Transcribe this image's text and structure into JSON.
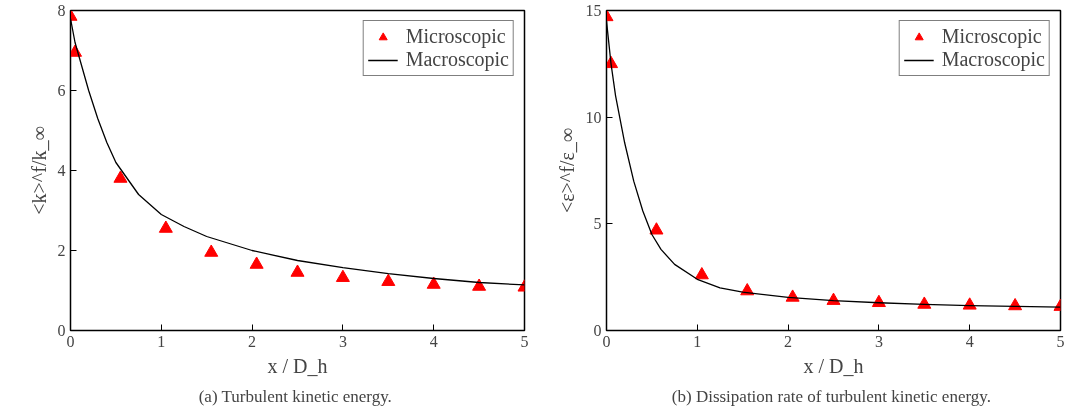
{
  "chart_data": [
    {
      "type": "scatter",
      "xlabel": "x / D_h",
      "ylabel": "<k>^f/k_∞",
      "annotations": [
        "(a)  Turbulent kinetic energy."
      ],
      "xlim": [
        0,
        5
      ],
      "xticks": [
        0,
        1,
        2,
        3,
        4,
        5
      ],
      "ylim": [
        0,
        8
      ],
      "yticks": [
        0,
        2,
        4,
        6,
        8
      ],
      "grid": false,
      "legend": "top right",
      "series": [
        {
          "name": "Microscopic",
          "marker": "triangle",
          "color": "#ff0000",
          "x": [
            0,
            0.05,
            0.55,
            1.05,
            1.55,
            2.05,
            2.5,
            3,
            3.5,
            4,
            4.5,
            5
          ],
          "values": [
            7.85,
            6.95,
            3.8,
            2.55,
            1.95,
            1.65,
            1.45,
            1.32,
            1.22,
            1.15,
            1.1,
            1.08
          ]
        },
        {
          "name": "Macroscopic",
          "type": "line",
          "line_style": "solid",
          "color": "#000000",
          "x": [
            0,
            0.05,
            0.1,
            0.2,
            0.3,
            0.4,
            0.5,
            0.75,
            1,
            1.25,
            1.5,
            2,
            2.5,
            3,
            3.5,
            4,
            4.5,
            5
          ],
          "values": [
            7.8,
            7.2,
            6.8,
            6.0,
            5.3,
            4.7,
            4.2,
            3.4,
            2.9,
            2.6,
            2.35,
            2.0,
            1.75,
            1.57,
            1.42,
            1.3,
            1.2,
            1.14
          ]
        }
      ]
    },
    {
      "type": "scatter",
      "xlabel": "x / D_h",
      "ylabel": "<ε>^f/ε_∞",
      "annotations": [
        "(b)  Dissipation rate of turbulent kinetic energy."
      ],
      "xlim": [
        0,
        5
      ],
      "xticks": [
        0,
        1,
        2,
        3,
        4,
        5
      ],
      "ylim": [
        0,
        15
      ],
      "yticks": [
        0,
        5,
        10,
        15
      ],
      "grid": false,
      "legend": "top right",
      "series": [
        {
          "name": "Microscopic",
          "marker": "triangle",
          "color": "#ff0000",
          "x": [
            0,
            0.05,
            0.55,
            1.05,
            1.55,
            2.05,
            2.5,
            3,
            3.5,
            4,
            4.5,
            5
          ],
          "values": [
            14.7,
            12.5,
            4.7,
            2.6,
            1.85,
            1.55,
            1.4,
            1.3,
            1.22,
            1.18,
            1.15,
            1.12
          ]
        },
        {
          "name": "Macroscopic",
          "type": "line",
          "line_style": "solid",
          "color": "#000000",
          "x": [
            0,
            0.05,
            0.1,
            0.2,
            0.3,
            0.4,
            0.5,
            0.6,
            0.75,
            1,
            1.25,
            1.5,
            2,
            2.5,
            3,
            3.5,
            4,
            4.5,
            5
          ],
          "values": [
            14.5,
            12.5,
            11.0,
            8.8,
            7.0,
            5.6,
            4.5,
            3.8,
            3.1,
            2.4,
            2.0,
            1.8,
            1.55,
            1.4,
            1.3,
            1.22,
            1.17,
            1.13,
            1.1
          ]
        }
      ]
    }
  ]
}
